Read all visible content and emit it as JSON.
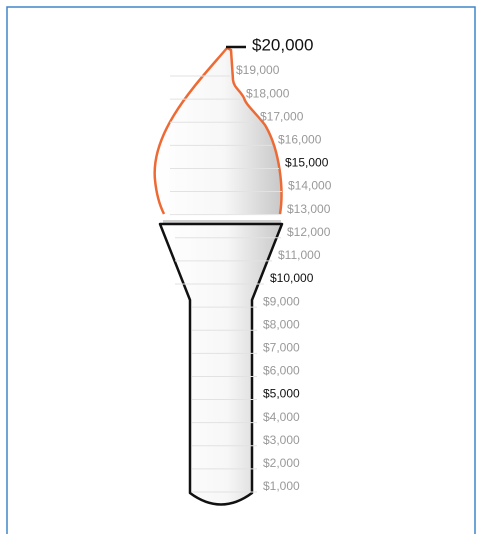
{
  "gauge": {
    "goal": "$20,000",
    "ticks": [
      {
        "label": "$19,000",
        "emphasis": false
      },
      {
        "label": "$18,000",
        "emphasis": false
      },
      {
        "label": "$17,000",
        "emphasis": false
      },
      {
        "label": "$16,000",
        "emphasis": false
      },
      {
        "label": "$15,000",
        "emphasis": true
      },
      {
        "label": "$14,000",
        "emphasis": false
      },
      {
        "label": "$13,000",
        "emphasis": false
      },
      {
        "label": "$12,000",
        "emphasis": false
      },
      {
        "label": "$11,000",
        "emphasis": false
      },
      {
        "label": "$10,000",
        "emphasis": true
      },
      {
        "label": "$9,000",
        "emphasis": false
      },
      {
        "label": "$8,000",
        "emphasis": false
      },
      {
        "label": "$7,000",
        "emphasis": false
      },
      {
        "label": "$6,000",
        "emphasis": false
      },
      {
        "label": "$5,000",
        "emphasis": true
      },
      {
        "label": "$4,000",
        "emphasis": false
      },
      {
        "label": "$3,000",
        "emphasis": false
      },
      {
        "label": "$2,000",
        "emphasis": false
      },
      {
        "label": "$1,000",
        "emphasis": false
      }
    ]
  }
}
